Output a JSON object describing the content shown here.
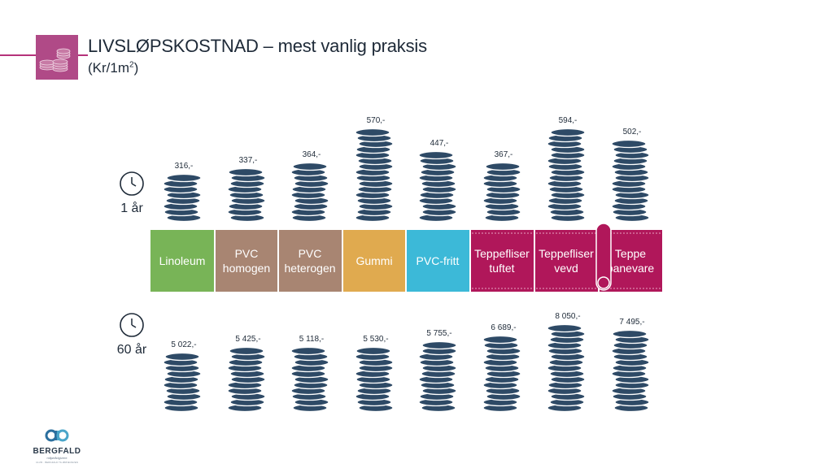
{
  "header": {
    "title": "LIVSLØPSKOSTNAD – mest vanlig praksis",
    "subtitle_prefix": "(Kr/1m",
    "subtitle_sup": "2",
    "subtitle_suffix": ")"
  },
  "icons": {
    "logo": "coin-stack-icon",
    "period": "clock-icon"
  },
  "brand": {
    "name": "BERGFALD",
    "tagline": "miljørådgivere",
    "fine_print": "ULVIK · BERGFALD TIL ØRNEVEVEN"
  },
  "chart_data": {
    "type": "pictograph-bar",
    "unit": "kr/m²",
    "categories": [
      "Linoleum",
      "PVC homogen",
      "PVC heterogen",
      "Gummi",
      "PVC-fritt",
      "Teppefliser tuftet",
      "Teppefliser vevd",
      "Teppe banevare"
    ],
    "category_lines": [
      [
        "Linoleum"
      ],
      [
        "PVC",
        "homogen"
      ],
      [
        "PVC",
        "heterogen"
      ],
      [
        "Gummi"
      ],
      [
        "PVC-fritt"
      ],
      [
        "Teppefliser",
        "tuftet"
      ],
      [
        "Teppefliser",
        "vevd"
      ],
      [
        "Teppe",
        "banevare"
      ]
    ],
    "category_colors": [
      "#78b457",
      "#a88572",
      "#a88572",
      "#e0aa4f",
      "#3cb9d8",
      "#b0175a",
      "#b0175a",
      "#b0175a"
    ],
    "coin_color": "#2e4a66",
    "series": [
      {
        "name": "1 år",
        "values": [
          316,
          337,
          364,
          570,
          447,
          367,
          594,
          502
        ],
        "labels": [
          "316,-",
          "337,-",
          "364,-",
          "570,-",
          "447,-",
          "367,-",
          "594,-",
          "502,-"
        ]
      },
      {
        "name": "60 år",
        "values": [
          5022,
          5425,
          5118,
          5530,
          5755,
          6689,
          8050,
          7495
        ],
        "labels": [
          "5 022,-",
          "5 425,-",
          "5 118,-",
          "5 530,-",
          "5 755,-",
          "6 689,-",
          "8 050,-",
          "7 495,-"
        ]
      }
    ]
  }
}
